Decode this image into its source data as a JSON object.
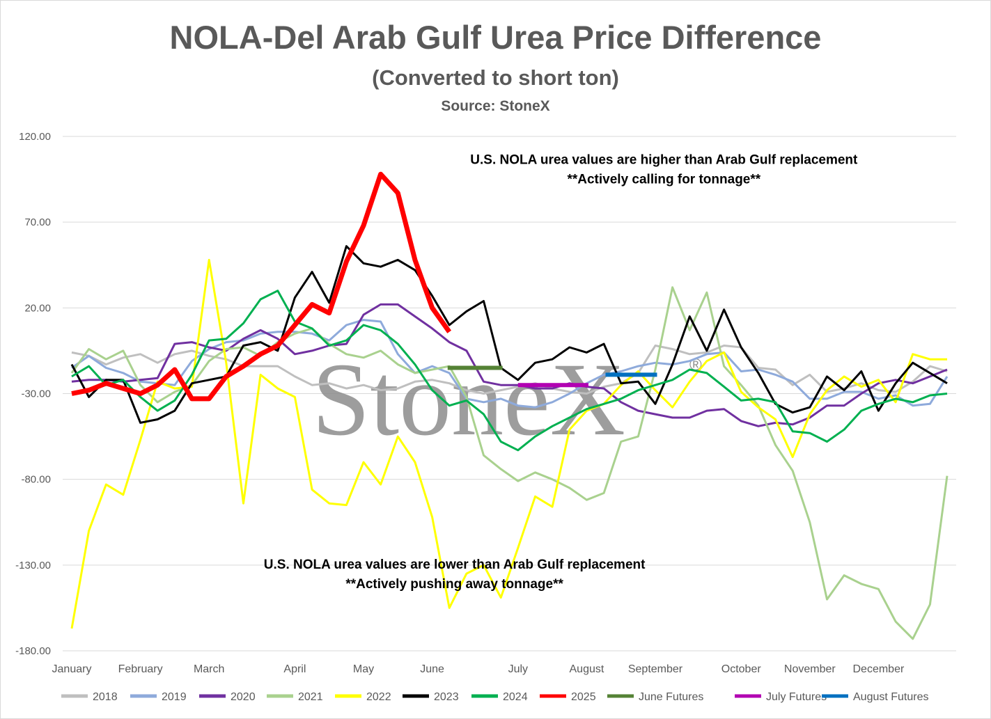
{
  "chart_data": {
    "type": "line",
    "title": "NOLA-Del Arab Gulf Urea Price Difference",
    "subtitle": "(Converted to short ton)",
    "source": "Source: StoneX",
    "watermark": "StoneX",
    "watermark_mark": "®",
    "ylim": [
      -180,
      120
    ],
    "yticks": [
      120,
      70,
      20,
      -30,
      -80,
      -130,
      -180
    ],
    "ytick_labels": [
      "120.00",
      "70.00",
      "20.00",
      "-30.00",
      "-80.00",
      "-130.00",
      "-180.00"
    ],
    "grid": "horizontal",
    "legend_position": "bottom",
    "x_unit": "week of year (1-52)",
    "x_range": [
      1,
      52
    ],
    "month_labels": [
      {
        "label": "January",
        "week": 1
      },
      {
        "label": "February",
        "week": 5
      },
      {
        "label": "March",
        "week": 9
      },
      {
        "label": "April",
        "week": 14
      },
      {
        "label": "May",
        "week": 18
      },
      {
        "label": "June",
        "week": 22
      },
      {
        "label": "July",
        "week": 27
      },
      {
        "label": "August",
        "week": 31
      },
      {
        "label": "September",
        "week": 35
      },
      {
        "label": "October",
        "week": 40
      },
      {
        "label": "November",
        "week": 44
      },
      {
        "label": "December",
        "week": 48
      }
    ],
    "annotations": [
      {
        "id": "above",
        "lines": [
          "U.S. NOLA urea values are higher than Arab Gulf replacement",
          "**Actively calling for tonnage**"
        ],
        "week": 35.5,
        "y": 104
      },
      {
        "id": "below",
        "lines": [
          "U.S. NOLA urea values are lower than Arab Gulf replacement",
          "**Actively pushing away tonnage**"
        ],
        "week": 23.3,
        "y": -132
      }
    ],
    "series": [
      {
        "name": "2018",
        "color": "#bfbfbf",
        "width": 3,
        "values": [
          -6,
          -8,
          -13,
          -9,
          -7,
          -12,
          -7,
          -5,
          -8,
          -10,
          -14,
          -14,
          -14,
          -20,
          -25,
          -24,
          -27,
          -25,
          -28,
          -27,
          -23,
          -22,
          -24,
          -28,
          -30,
          -28,
          -26,
          -24,
          -27,
          -29,
          -30,
          -26,
          -24,
          -18,
          -2,
          -4,
          -7,
          -6,
          -2,
          -3,
          -15,
          -16,
          -25,
          -19,
          -29,
          -27,
          -24,
          -28,
          -29,
          -23,
          -14,
          -17
        ]
      },
      {
        "name": "2019",
        "color": "#8eaadb",
        "width": 3,
        "values": [
          -15,
          -8,
          -15,
          -18,
          -23,
          -24,
          -25,
          -11,
          -4,
          0,
          1,
          5,
          6,
          6,
          5,
          1,
          10,
          13,
          12,
          -7,
          -18,
          -14,
          -18,
          -33,
          -35,
          -33,
          -37,
          -38,
          -35,
          -30,
          -24,
          -19,
          -17,
          -14,
          -12,
          -13,
          -11,
          -7,
          -6,
          -17,
          -16,
          -19,
          -23,
          -33,
          -33,
          -29,
          -29,
          -33,
          -31,
          -37,
          -36,
          -20
        ]
      },
      {
        "name": "2020",
        "color": "#7030a0",
        "width": 3,
        "values": [
          -23,
          -22,
          -22,
          -23,
          -22,
          -21,
          -1,
          0,
          -3,
          -5,
          2,
          7,
          2,
          -7,
          -5,
          -2,
          -1,
          16,
          22,
          22,
          15,
          8,
          0,
          -5,
          -23,
          -25,
          -25,
          -27,
          -27,
          -24,
          -26,
          -27,
          -35,
          -40,
          -42,
          -44,
          -44,
          -40,
          -39,
          -46,
          -49,
          -47,
          -48,
          -44,
          -37,
          -37,
          -30,
          -24,
          -22,
          -24,
          -20,
          -16
        ]
      },
      {
        "name": "2021",
        "color": "#a9d18e",
        "width": 3,
        "values": [
          -18,
          -4,
          -10,
          -5,
          -25,
          -35,
          -29,
          -25,
          -11,
          -4,
          -3,
          -8,
          0,
          5,
          8,
          -1,
          -7,
          -9,
          -5,
          -13,
          -18,
          -16,
          -14,
          -32,
          -66,
          -74,
          -81,
          -76,
          -80,
          -85,
          -92,
          -88,
          -58,
          -55,
          -16,
          32,
          7,
          29,
          -14,
          -25,
          -37,
          -60,
          -75,
          -105,
          -150,
          -136,
          -141,
          -144,
          -163,
          -173,
          -153,
          -78
        ]
      },
      {
        "name": "2022",
        "color": "#ffff00",
        "width": 3,
        "values": [
          -167,
          -110,
          -83,
          -89,
          -57,
          -23,
          -27,
          -26,
          48,
          -12,
          -94,
          -19,
          -27,
          -32,
          -86,
          -94,
          -95,
          -70,
          -83,
          -55,
          -70,
          -102,
          -155,
          -135,
          -130,
          -149,
          -120,
          -90,
          -96,
          -51,
          -40,
          -36,
          -25,
          -17,
          -28,
          -38,
          -23,
          -11,
          -6,
          -29,
          -38,
          -45,
          -67,
          -42,
          -28,
          -20,
          -26,
          -22,
          -35,
          -7,
          -10,
          -10
        ]
      },
      {
        "name": "2023",
        "color": "#000000",
        "width": 3,
        "values": [
          -13,
          -32,
          -22,
          -22,
          -47,
          -45,
          -40,
          -24,
          -22,
          -20,
          -2,
          0,
          -5,
          26,
          41,
          23,
          56,
          46,
          44,
          48,
          42,
          27,
          10,
          18,
          24,
          -15,
          -22,
          -12,
          -10,
          -3,
          -6,
          -1,
          -24,
          -23,
          -36,
          -13,
          15,
          -5,
          19,
          -3,
          -18,
          -36,
          -41,
          -38,
          -20,
          -28,
          -17,
          -40,
          -24,
          -12,
          -18,
          -24
        ]
      },
      {
        "name": "2024",
        "color": "#00b050",
        "width": 3,
        "values": [
          -20,
          -14,
          -25,
          -22,
          -32,
          -40,
          -34,
          -19,
          1,
          2,
          11,
          25,
          30,
          12,
          8,
          -2,
          1,
          10,
          7,
          -1,
          -13,
          -28,
          -37,
          -34,
          -42,
          -58,
          -63,
          -55,
          -49,
          -44,
          -39,
          -36,
          -33,
          -28,
          -25,
          -22,
          -16,
          -18,
          -26,
          -34,
          -33,
          -35,
          -52,
          -53,
          -58,
          -51,
          -40,
          -36,
          -33,
          -35,
          -31,
          -30
        ]
      },
      {
        "name": "2025",
        "color": "#ff0000",
        "width": 7,
        "values": [
          -30,
          -28,
          -24,
          -27,
          -30,
          -25,
          -16,
          -33,
          -33,
          -20,
          -14,
          -7,
          -2,
          10,
          22,
          17,
          47,
          68,
          98,
          87,
          48,
          20,
          6,
          null,
          null,
          null,
          null,
          null,
          null,
          null,
          null,
          null,
          null,
          null,
          null,
          null,
          null,
          null,
          null,
          null,
          null,
          null,
          null,
          null,
          null,
          null,
          null,
          null,
          null,
          null,
          null,
          null
        ]
      },
      {
        "name": "June Futures",
        "color": "#548235",
        "width": 6,
        "x": [
          22.9,
          26.1
        ],
        "values": [
          -15,
          -15
        ]
      },
      {
        "name": "July Futures",
        "color": "#b200b2",
        "width": 6,
        "x": [
          27,
          31.1
        ],
        "values": [
          -25,
          -25
        ]
      },
      {
        "name": "August Futures",
        "color": "#0070c0",
        "width": 6,
        "x": [
          32.1,
          35.1
        ],
        "values": [
          -19,
          -19
        ]
      }
    ]
  }
}
